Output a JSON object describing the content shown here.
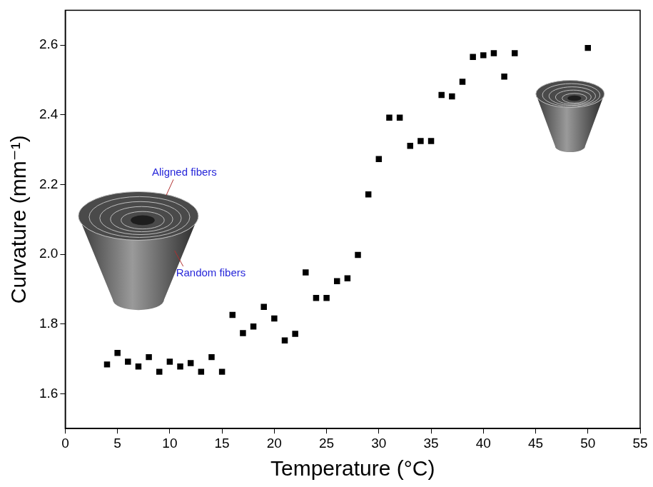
{
  "chart_data": {
    "type": "scatter",
    "x_label": "Temperature (°C)",
    "y_label": "Curvature (mm⁻¹)",
    "x": [
      4,
      5,
      6,
      7,
      8,
      9,
      10,
      11,
      12,
      13,
      14,
      15,
      16,
      17,
      18,
      19,
      20,
      21,
      22,
      23,
      24,
      25,
      26,
      27,
      28,
      29,
      30,
      31,
      32,
      33,
      34,
      35,
      36,
      37,
      38,
      39,
      40,
      41,
      42,
      43,
      50
    ],
    "values": [
      1.684,
      1.717,
      1.692,
      1.678,
      1.705,
      1.663,
      1.692,
      1.678,
      1.688,
      1.663,
      1.705,
      1.663,
      1.826,
      1.774,
      1.793,
      1.849,
      1.816,
      1.753,
      1.772,
      1.948,
      1.875,
      1.875,
      1.923,
      1.931,
      1.998,
      2.172,
      2.273,
      2.392,
      2.392,
      2.311,
      2.325,
      2.325,
      2.457,
      2.453,
      2.495,
      2.566,
      2.571,
      2.577,
      2.51,
      2.577,
      2.592
    ],
    "color": "#000000",
    "marker": "square",
    "xlim": [
      0,
      55
    ],
    "xticks": [
      0,
      5,
      10,
      15,
      20,
      25,
      30,
      35,
      40,
      45,
      50,
      55
    ],
    "ylim": [
      1.5,
      2.7
    ],
    "yticks": [
      1.6,
      1.8,
      {
        "value": 2,
        "label": "2.0"
      },
      2.2,
      2.4,
      2.6
    ],
    "grid": false,
    "annotations": [
      "Aligned fibers",
      "Random fibers"
    ]
  }
}
